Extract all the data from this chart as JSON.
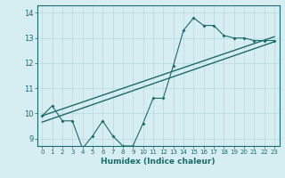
{
  "xlabel": "Humidex (Indice chaleur)",
  "bg_color": "#d6eef2",
  "line_color": "#1a6b6b",
  "xlim": [
    -0.5,
    23.5
  ],
  "ylim": [
    8.7,
    14.3
  ],
  "xticks": [
    0,
    1,
    2,
    3,
    4,
    5,
    6,
    7,
    8,
    9,
    10,
    11,
    12,
    13,
    14,
    15,
    16,
    17,
    18,
    19,
    20,
    21,
    22,
    23
  ],
  "yticks": [
    9,
    10,
    11,
    12,
    13,
    14
  ],
  "grid_color": "#b8d8de",
  "jagged_x": [
    0,
    1,
    2,
    3,
    4,
    5,
    6,
    7,
    8,
    9,
    10,
    11,
    12,
    13,
    14,
    15,
    16,
    17,
    18,
    19,
    20,
    21,
    22,
    23
  ],
  "jagged_y": [
    9.9,
    10.3,
    9.7,
    9.7,
    8.6,
    9.1,
    9.7,
    9.1,
    8.7,
    8.7,
    9.6,
    10.6,
    10.6,
    11.9,
    13.3,
    13.8,
    13.5,
    13.5,
    13.1,
    13.0,
    13.0,
    12.9,
    12.9,
    12.9
  ],
  "trend1_x": [
    0,
    23
  ],
  "trend1_y": [
    9.9,
    13.05
  ],
  "trend2_x": [
    0,
    23
  ],
  "trend2_y": [
    9.65,
    12.85
  ]
}
